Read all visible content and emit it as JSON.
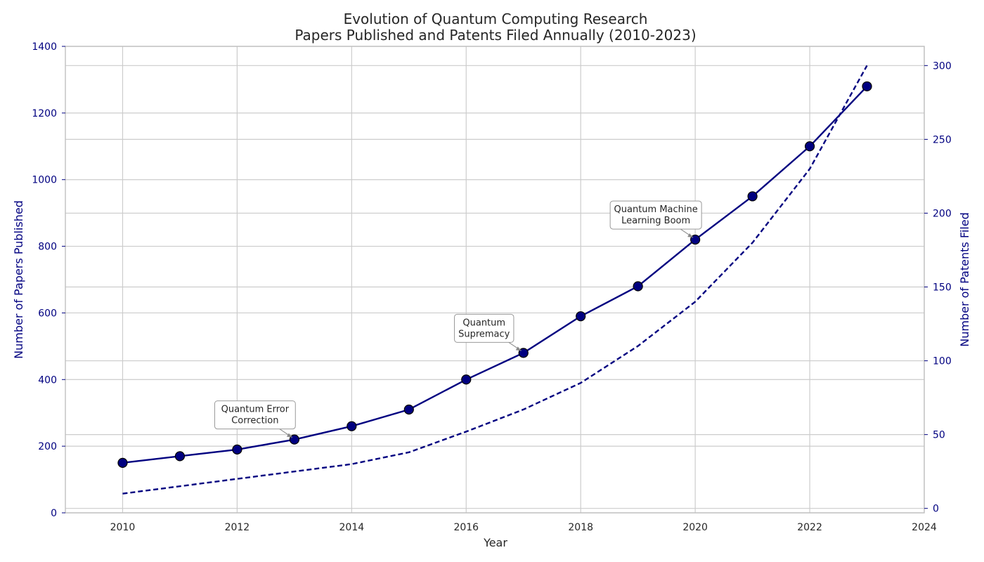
{
  "chart_data": {
    "type": "line",
    "title": [
      "Evolution of Quantum Computing Research",
      "Papers Published and Patents Filed Annually (2010-2023)"
    ],
    "xlabel": "Year",
    "ylabel_left": "Number of Papers Published",
    "ylabel_right": "Number of Patents Filed",
    "x": [
      2010,
      2011,
      2012,
      2013,
      2014,
      2015,
      2016,
      2017,
      2018,
      2019,
      2020,
      2021,
      2022,
      2023
    ],
    "xlim": [
      2009,
      2024
    ],
    "x_ticks": [
      "2010",
      "2012",
      "2014",
      "2016",
      "2018",
      "2020",
      "2022",
      "2024"
    ],
    "ylim_left": [
      0,
      1400
    ],
    "y_ticks_left": [
      "0",
      "200",
      "400",
      "600",
      "800",
      "1000",
      "1200",
      "1400"
    ],
    "ylim_right": [
      -3,
      313
    ],
    "y_ticks_right": [
      "0",
      "50",
      "100",
      "150",
      "200",
      "250",
      "300"
    ],
    "grid": true,
    "series": [
      {
        "axis": "left",
        "style": "solid",
        "markers": true,
        "color": "#000080",
        "values": [
          150,
          170,
          190,
          220,
          260,
          310,
          400,
          480,
          590,
          680,
          820,
          950,
          1100,
          1280
        ]
      },
      {
        "axis": "right",
        "style": "dashed",
        "markers": false,
        "color": "#000080",
        "values": [
          10,
          15,
          20,
          25,
          30,
          38,
          52,
          67,
          85,
          110,
          140,
          180,
          230,
          300
        ]
      }
    ],
    "annotations": [
      {
        "lines": [
          "Quantum Error",
          "Correction"
        ],
        "year": 2013,
        "papers": 220
      },
      {
        "lines": [
          "Quantum",
          "Supremacy"
        ],
        "year": 2017,
        "papers": 480
      },
      {
        "lines": [
          "Quantum Machine",
          "Learning Boom"
        ],
        "year": 2020,
        "papers": 820
      }
    ]
  }
}
